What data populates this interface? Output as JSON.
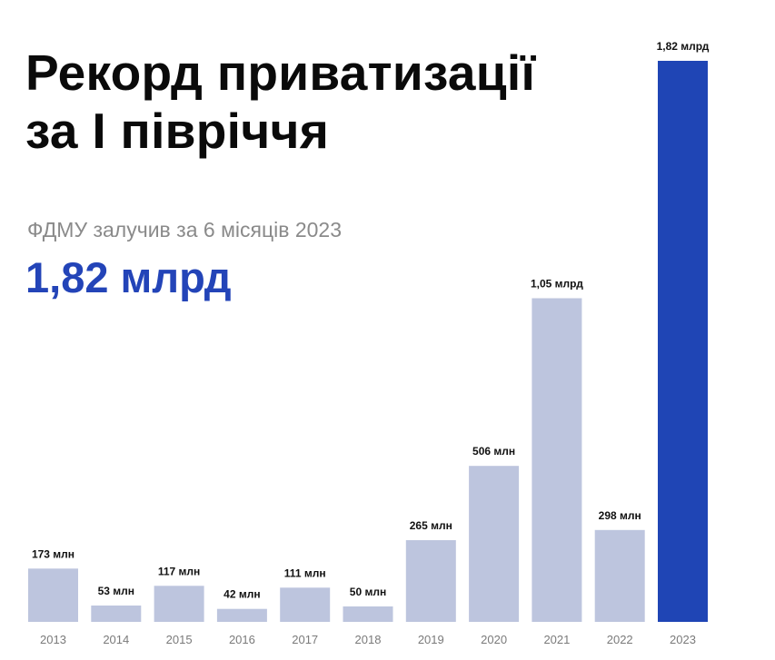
{
  "header": {
    "title_line1": "Рекорд приватизації",
    "title_line2": "за І півріччя",
    "subtitle": "ФДМУ залучив за 6 місяців 2023",
    "highlight": "1,82 млрд"
  },
  "colors": {
    "bar": "#bdc5de",
    "highlight_bar": "#1f45b5",
    "highlight_text": "#2344b8"
  },
  "chart_data": {
    "type": "bar",
    "title": "Рекорд приватизації за І півріччя",
    "categories": [
      "2013",
      "2014",
      "2015",
      "2016",
      "2017",
      "2018",
      "2019",
      "2020",
      "2021",
      "2022",
      "2023"
    ],
    "values": [
      173,
      53,
      117,
      42,
      111,
      50,
      265,
      506,
      1050,
      298,
      1820
    ],
    "value_unit": "млн",
    "data_labels": [
      "173 млн",
      "53 млн",
      "117 млн",
      "42 млн",
      "111 млн",
      "50 млн",
      "265 млн",
      "506 млн",
      "1,05 млрд",
      "298 млн",
      "1,82 млрд"
    ],
    "highlight_index": 10,
    "ylim": [
      0,
      1820
    ],
    "grid": false,
    "legend": "none"
  }
}
